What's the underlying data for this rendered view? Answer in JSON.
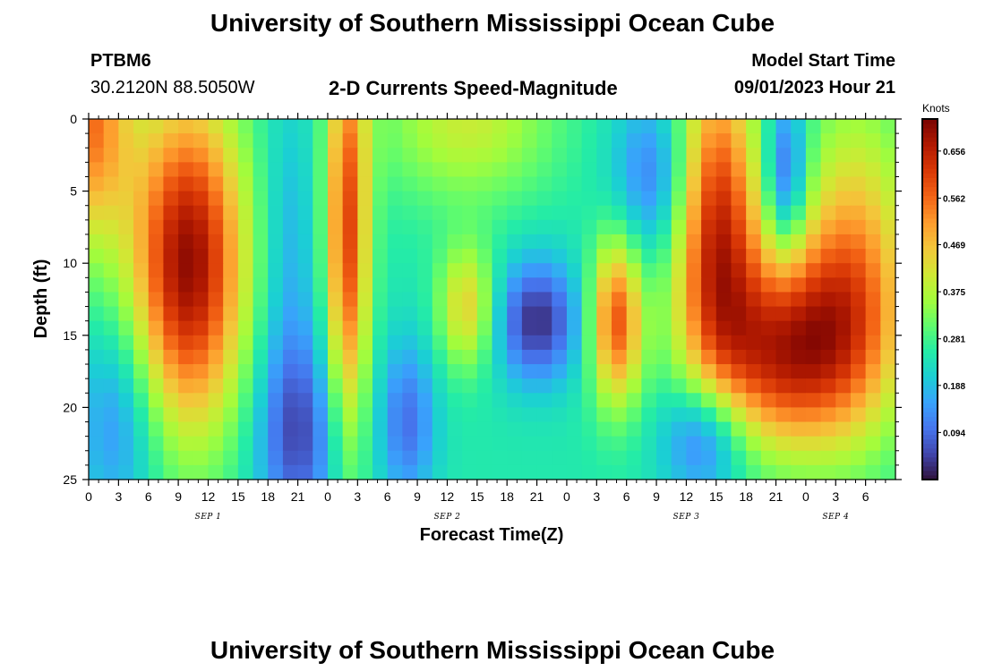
{
  "header": {
    "title": "University of Southern Mississippi Ocean Cube",
    "station": "PTBM6",
    "coords": "30.2120N  88.5050W",
    "subtitle": "2-D Currents Speed-Magnitude",
    "model_label": "Model Start Time",
    "model_time": "09/01/2023 Hour 21"
  },
  "footer": {
    "title": "University of Southern Mississippi Ocean Cube"
  },
  "chart_data": {
    "type": "heatmap",
    "title": "2-D Currents Speed-Magnitude",
    "xlabel": "Forecast Time(Z)",
    "ylabel": "Depth (ft)",
    "x_range_hours": [
      0,
      81
    ],
    "y_range_ft": [
      0,
      25
    ],
    "y_reversed": true,
    "x_tick_labels": [
      "0",
      "3",
      "6",
      "9",
      "12",
      "15",
      "18",
      "21",
      "0",
      "3",
      "6",
      "9",
      "12",
      "15",
      "18",
      "21",
      "0",
      "3",
      "6",
      "9",
      "12",
      "15",
      "18",
      "21",
      "0",
      "3",
      "6"
    ],
    "x_tick_hours": [
      0,
      3,
      6,
      9,
      12,
      15,
      18,
      21,
      24,
      27,
      30,
      33,
      36,
      39,
      42,
      45,
      48,
      51,
      54,
      57,
      60,
      63,
      66,
      69,
      72,
      75,
      78
    ],
    "date_labels": [
      {
        "label": "SEP 1",
        "hour": 12
      },
      {
        "label": "SEP 2",
        "hour": 36
      },
      {
        "label": "SEP 3",
        "hour": 60
      },
      {
        "label": "SEP 4",
        "hour": 75
      }
    ],
    "y_tick_labels": [
      "0",
      "5",
      "10",
      "15",
      "20",
      "25"
    ],
    "y_tick_values": [
      0,
      5,
      10,
      15,
      20,
      25
    ],
    "colorbar": {
      "unit": "Knots",
      "min": 0.0,
      "max": 0.72,
      "ticks": [
        "0.656",
        "0.562",
        "0.469",
        "0.375",
        "0.281",
        "0.188",
        "0.094"
      ],
      "tick_values": [
        0.656,
        0.562,
        0.469,
        0.375,
        0.281,
        0.188,
        0.094
      ],
      "colormap": [
        "#30123b",
        "#4145ab",
        "#4675ed",
        "#39a2fc",
        "#1bcfd4",
        "#24eca6",
        "#61fc6c",
        "#a4fc3b",
        "#d1e834",
        "#f3c63a",
        "#fe9b2d",
        "#f36315",
        "#d93806",
        "#b11901",
        "#7a0402"
      ]
    },
    "speed_field_blobs": [
      {
        "t": 0,
        "d": 0,
        "st": 3,
        "sd": 6,
        "v": 0.3
      },
      {
        "t": 10,
        "d": 10,
        "st": 4,
        "sd": 8,
        "v": 0.45
      },
      {
        "t": 3,
        "d": 21,
        "st": 3,
        "sd": 5,
        "v": -0.12
      },
      {
        "t": 21,
        "d": 22,
        "st": 3,
        "sd": 5,
        "v": -0.18
      },
      {
        "t": 20,
        "d": 9,
        "st": 2,
        "sd": 8,
        "v": -0.08
      },
      {
        "t": 26,
        "d": 8,
        "st": 1.5,
        "sd": 10,
        "v": 0.35
      },
      {
        "t": 32,
        "d": 21,
        "st": 2,
        "sd": 4,
        "v": -0.15
      },
      {
        "t": 38,
        "d": 13,
        "st": 2,
        "sd": 3,
        "v": 0.2
      },
      {
        "t": 38,
        "d": 0,
        "st": 6,
        "sd": 4,
        "v": 0.15
      },
      {
        "t": 45,
        "d": 14,
        "st": 3,
        "sd": 3,
        "v": -0.22
      },
      {
        "t": 53,
        "d": 14,
        "st": 1.8,
        "sd": 4,
        "v": 0.33
      },
      {
        "t": 57,
        "d": 4,
        "st": 3,
        "sd": 4,
        "v": -0.15
      },
      {
        "t": 63,
        "d": 7,
        "st": 3,
        "sd": 8,
        "v": 0.38
      },
      {
        "t": 62,
        "d": 22,
        "st": 3,
        "sd": 3,
        "v": -0.2
      },
      {
        "t": 70,
        "d": 4,
        "st": 1.5,
        "sd": 4,
        "v": -0.2
      },
      {
        "t": 71,
        "d": 15,
        "st": 6,
        "sd": 5,
        "v": 0.3
      },
      {
        "t": 77,
        "d": 10,
        "st": 4,
        "sd": 8,
        "v": 0.22
      },
      {
        "t": 69,
        "d": 18,
        "st": 5,
        "sd": 4,
        "v": 0.12
      }
    ],
    "speed_base": 0.25
  }
}
